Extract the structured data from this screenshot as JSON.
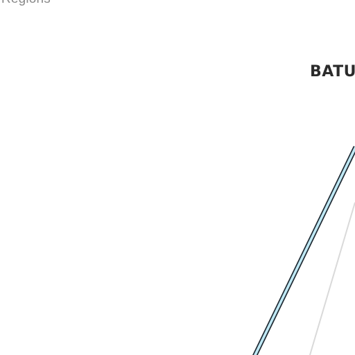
{
  "map": {
    "region_label": "l Regions",
    "city_label": "BATU",
    "colors": {
      "background": "#ffffff",
      "route_fill": "#bfe9f5",
      "route_outline": "#1f2a33",
      "road": "#d9d9d9",
      "label_text": "#2b2b2b",
      "region_text": "#8a8a8a"
    }
  }
}
